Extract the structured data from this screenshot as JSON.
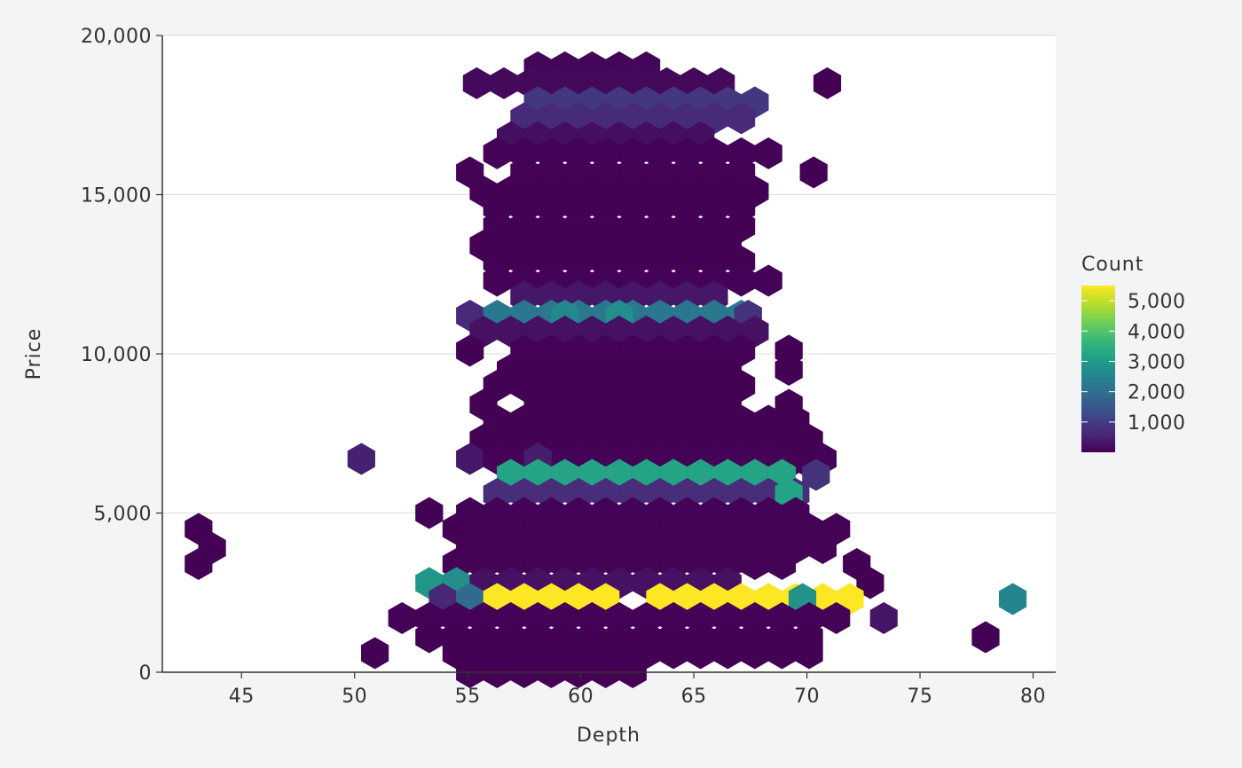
{
  "chart_data": {
    "type": "heatmap",
    "subtype": "hexbin",
    "title": "",
    "xlabel": "Depth",
    "ylabel": "Price",
    "xlim": [
      41.5,
      81
    ],
    "ylim": [
      0,
      20000
    ],
    "x_ticks": [
      45,
      50,
      55,
      60,
      65,
      70,
      75,
      80
    ],
    "y_ticks": [
      0,
      5000,
      10000,
      15000,
      20000
    ],
    "y_tick_labels": [
      "0",
      "5,000",
      "10,000",
      "15,000",
      "20,000"
    ],
    "grid": "horizontal",
    "colormap": "viridis",
    "background_color": "#ffffff",
    "page_color": "#f3f4f6",
    "legend": {
      "title": "Count",
      "placement": "right",
      "min": 1,
      "max": 5500,
      "ticks": [
        1000,
        2000,
        3000,
        4000,
        5000
      ],
      "tick_labels": [
        "1,000",
        "2,000",
        "3,000",
        "4,000",
        "5,000"
      ]
    },
    "bin_size": {
      "dx": 1.2,
      "dy": 580
    },
    "bin_ranges": [
      [
        19,
        58.1,
        62.9,
        80
      ],
      [
        18.5,
        55.4,
        66.2,
        120,
        [
          [
            70.9,
            20
          ]
        ]
      ],
      [
        17.9,
        58.1,
        68,
        900,
        [
          [
            66.8,
            -1
          ]
        ]
      ],
      [
        17.4,
        57.5,
        67.4,
        650
      ],
      [
        16.8,
        56.9,
        65.6,
        220
      ],
      [
        16.3,
        56.3,
        68.6,
        30
      ],
      [
        15.7,
        55.1,
        68,
        25,
        [
          [
            56.3,
            -1
          ],
          [
            70.3,
            15
          ]
        ]
      ],
      [
        15.1,
        55.7,
        68.6,
        20
      ],
      [
        14.6,
        56.3,
        68,
        15
      ],
      [
        14.0,
        56.3,
        68,
        15
      ],
      [
        13.4,
        55.7,
        67.4,
        15
      ],
      [
        12.9,
        56.3,
        68,
        15
      ],
      [
        12.3,
        56.3,
        68.6,
        40
      ],
      [
        11.8,
        57.5,
        66.2,
        350
      ],
      [
        11.2,
        55.1,
        67.4,
        2200,
        [
          [
            55.1,
            650
          ],
          [
            59.3,
            2600
          ],
          [
            61.7,
            2700
          ],
          [
            66.2,
            -1
          ],
          [
            67.4,
            800
          ]
        ]
      ],
      [
        10.7,
        55.7,
        68,
        250
      ],
      [
        10.1,
        57.5,
        68,
        30,
        [
          [
            55.1,
            15
          ],
          [
            69.2,
            10
          ]
        ]
      ],
      [
        9.5,
        56.9,
        66.8,
        20,
        [
          [
            69.2,
            10
          ]
        ]
      ],
      [
        9.0,
        56.3,
        67.4,
        20
      ],
      [
        8.4,
        55.7,
        66.8,
        20,
        [
          [
            56.9,
            -1
          ],
          [
            69.2,
            15
          ]
        ]
      ],
      [
        7.9,
        56.3,
        69.8,
        20
      ],
      [
        7.3,
        55.7,
        71.0,
        20,
        [
          [
            66.8,
            -1
          ]
        ]
      ],
      [
        6.7,
        55.1,
        71.0,
        30,
        [
          [
            50.3,
            500
          ],
          [
            55.1,
            350
          ],
          [
            58.1,
            450
          ],
          [
            69.8,
            10
          ]
        ]
      ],
      [
        6.2,
        56.9,
        69.8,
        3200,
        [
          [
            70.4,
            800
          ]
        ]
      ],
      [
        5.6,
        56.3,
        69.8,
        700,
        [
          [
            69.2,
            3200
          ]
        ]
      ],
      [
        5.0,
        55.1,
        70.4,
        30,
        [
          [
            53.3,
            20
          ]
        ]
      ],
      [
        4.5,
        55.7,
        72.2,
        25,
        [
          [
            43.1,
            15
          ],
          [
            54.5,
            20
          ]
        ]
      ],
      [
        3.9,
        55.1,
        71.6,
        25,
        [
          [
            43.7,
            15
          ]
        ]
      ],
      [
        3.4,
        54.5,
        69.2,
        25,
        [
          [
            43.1,
            20
          ],
          [
            72.2,
            15
          ]
        ]
      ],
      [
        2.8,
        53.3,
        66.8,
        250,
        [
          [
            53.3,
            2900
          ],
          [
            54.5,
            2700
          ],
          [
            72.8,
            10
          ]
        ]
      ],
      [
        2.3,
        53.9,
        72.2,
        5500,
        [
          [
            53.9,
            600
          ],
          [
            55.1,
            1900
          ],
          [
            62.3,
            -1
          ],
          [
            69.8,
            2800
          ],
          [
            79.1,
            2500
          ]
        ]
      ],
      [
        1.7,
        52.1,
        71.6,
        30,
        [
          [
            73.4,
            300
          ]
        ]
      ],
      [
        1.1,
        53.3,
        71.0,
        15,
        [
          [
            77.9,
            10
          ]
        ]
      ],
      [
        0.6,
        54.5,
        71.0,
        15,
        [
          [
            50.9,
            10
          ]
        ]
      ],
      [
        0.0,
        55.1,
        62.9,
        10
      ]
    ]
  }
}
